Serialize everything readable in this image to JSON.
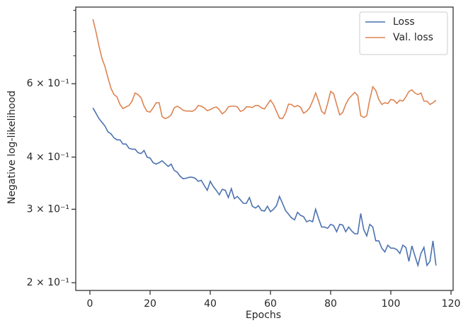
{
  "chart_data": {
    "type": "line",
    "xlabel": "Epochs",
    "ylabel": "Negative log-likelihood",
    "x": [
      1,
      2,
      3,
      4,
      5,
      6,
      7,
      8,
      9,
      10,
      11,
      12,
      13,
      14,
      15,
      16,
      17,
      18,
      19,
      20,
      21,
      22,
      23,
      24,
      25,
      26,
      27,
      28,
      29,
      30,
      31,
      32,
      33,
      34,
      35,
      36,
      37,
      38,
      39,
      40,
      41,
      42,
      43,
      44,
      45,
      46,
      47,
      48,
      49,
      50,
      51,
      52,
      53,
      54,
      55,
      56,
      57,
      58,
      59,
      60,
      61,
      62,
      63,
      64,
      65,
      66,
      67,
      68,
      69,
      70,
      71,
      72,
      73,
      74,
      75,
      76,
      77,
      78,
      79,
      80,
      81,
      82,
      83,
      84,
      85,
      86,
      87,
      88,
      89,
      90,
      91,
      92,
      93,
      94,
      95,
      96,
      97,
      98,
      99,
      100,
      101,
      102,
      103,
      104,
      105,
      106,
      107,
      108,
      109,
      110,
      111,
      112,
      113,
      114,
      115
    ],
    "series": [
      {
        "name": "Loss",
        "color": "#4c72b0",
        "values": [
          0.525,
          0.51,
          0.495,
          0.485,
          0.475,
          0.46,
          0.455,
          0.445,
          0.44,
          0.44,
          0.43,
          0.43,
          0.42,
          0.418,
          0.418,
          0.41,
          0.408,
          0.415,
          0.4,
          0.398,
          0.388,
          0.385,
          0.388,
          0.392,
          0.386,
          0.38,
          0.385,
          0.372,
          0.368,
          0.36,
          0.355,
          0.356,
          0.358,
          0.358,
          0.356,
          0.35,
          0.352,
          0.342,
          0.333,
          0.35,
          0.34,
          0.333,
          0.325,
          0.335,
          0.333,
          0.32,
          0.336,
          0.318,
          0.322,
          0.316,
          0.31,
          0.31,
          0.32,
          0.305,
          0.302,
          0.306,
          0.298,
          0.297,
          0.305,
          0.296,
          0.3,
          0.306,
          0.322,
          0.31,
          0.298,
          0.292,
          0.286,
          0.283,
          0.295,
          0.29,
          0.288,
          0.28,
          0.282,
          0.28,
          0.3,
          0.285,
          0.272,
          0.272,
          0.27,
          0.276,
          0.274,
          0.265,
          0.276,
          0.275,
          0.265,
          0.272,
          0.266,
          0.262,
          0.262,
          0.293,
          0.268,
          0.259,
          0.276,
          0.272,
          0.252,
          0.252,
          0.242,
          0.237,
          0.246,
          0.242,
          0.242,
          0.24,
          0.235,
          0.246,
          0.243,
          0.225,
          0.245,
          0.232,
          0.22,
          0.235,
          0.243,
          0.22,
          0.225,
          0.252,
          0.22
        ]
      },
      {
        "name": "Val. loss",
        "color": "#dd8452",
        "values": [
          0.857,
          0.8,
          0.74,
          0.69,
          0.66,
          0.62,
          0.585,
          0.565,
          0.558,
          0.535,
          0.523,
          0.528,
          0.532,
          0.545,
          0.57,
          0.565,
          0.555,
          0.53,
          0.515,
          0.513,
          0.525,
          0.54,
          0.54,
          0.5,
          0.495,
          0.498,
          0.505,
          0.525,
          0.53,
          0.525,
          0.518,
          0.516,
          0.516,
          0.515,
          0.52,
          0.532,
          0.53,
          0.525,
          0.517,
          0.52,
          0.525,
          0.528,
          0.52,
          0.508,
          0.515,
          0.528,
          0.53,
          0.53,
          0.528,
          0.515,
          0.518,
          0.528,
          0.528,
          0.526,
          0.532,
          0.532,
          0.525,
          0.522,
          0.535,
          0.548,
          0.535,
          0.515,
          0.496,
          0.495,
          0.51,
          0.536,
          0.535,
          0.528,
          0.532,
          0.527,
          0.51,
          0.515,
          0.525,
          0.545,
          0.57,
          0.545,
          0.515,
          0.508,
          0.538,
          0.575,
          0.568,
          0.535,
          0.505,
          0.512,
          0.535,
          0.552,
          0.562,
          0.572,
          0.562,
          0.503,
          0.498,
          0.503,
          0.55,
          0.59,
          0.578,
          0.55,
          0.535,
          0.54,
          0.538,
          0.55,
          0.548,
          0.538,
          0.548,
          0.545,
          0.558,
          0.575,
          0.58,
          0.57,
          0.565,
          0.57,
          0.545,
          0.545,
          0.535,
          0.54,
          0.548
        ]
      }
    ],
    "xlim": [
      -4.7,
      120.7
    ],
    "xticks": [
      0,
      20,
      40,
      60,
      80,
      100,
      120
    ],
    "ylim": [
      0.1916,
      0.916
    ],
    "ylog": true,
    "yticks": [
      {
        "value": 0.2,
        "label": "2 × 10⁻¹"
      },
      {
        "value": 0.3,
        "label": "3 × 10⁻¹"
      },
      {
        "value": 0.4,
        "label": "4 × 10⁻¹"
      },
      {
        "value": 0.6,
        "label": "6 × 10⁻¹"
      }
    ],
    "yminorticks": [
      0.5,
      0.7,
      0.8,
      0.9
    ],
    "legend": "upper right"
  }
}
